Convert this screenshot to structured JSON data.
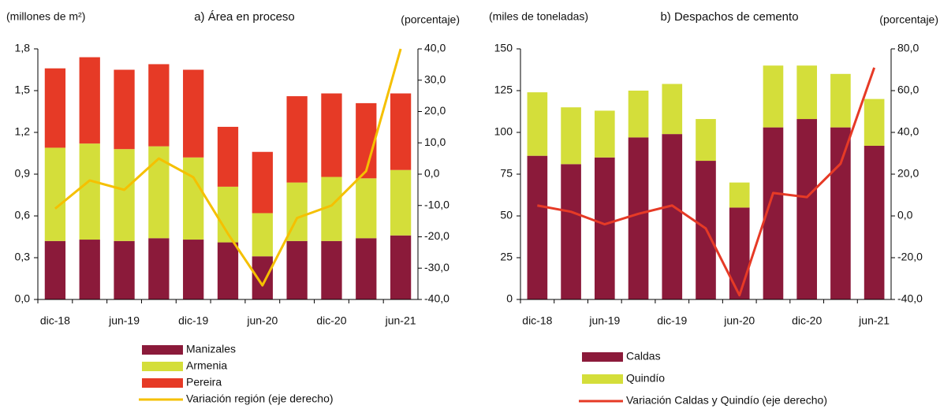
{
  "chart_data": [
    {
      "type": "bar",
      "stacked": true,
      "title": "a) Área en proceso",
      "y_label": "(millones de m²)",
      "y2_label": "(porcentaje)",
      "categories": [
        "dic-18",
        null,
        "jun-19",
        null,
        "dic-19",
        null,
        "jun-20",
        null,
        "dic-20",
        null,
        "jun-21"
      ],
      "series": [
        {
          "name": "Manizales",
          "color": "#8b1a3a",
          "values": [
            0.42,
            0.43,
            0.42,
            0.44,
            0.43,
            0.41,
            0.31,
            0.42,
            0.42,
            0.44,
            0.46
          ]
        },
        {
          "name": "Armenia",
          "color": "#d4de3a",
          "values": [
            0.67,
            0.69,
            0.66,
            0.66,
            0.59,
            0.4,
            0.31,
            0.42,
            0.46,
            0.43,
            0.47
          ]
        },
        {
          "name": "Pereira",
          "color": "#e63a26",
          "values": [
            0.57,
            0.62,
            0.57,
            0.59,
            0.63,
            0.43,
            0.44,
            0.62,
            0.6,
            0.54,
            0.55
          ]
        },
        {
          "name": "Variación región (eje derecho)",
          "type": "line",
          "axis": "y2",
          "color": "#f5c000",
          "values": [
            -11,
            -2,
            -5,
            5,
            -1,
            -19,
            -35.5,
            -14,
            -10,
            1,
            40
          ]
        }
      ],
      "ylim": [
        0,
        1.8
      ],
      "yticks": [
        {
          "value": 0,
          "label": "0,0"
        },
        {
          "value": 0.3,
          "label": "0,3"
        },
        {
          "value": 0.6,
          "label": "0,6"
        },
        {
          "value": 0.9,
          "label": "0,9"
        },
        {
          "value": 1.2,
          "label": "1,2"
        },
        {
          "value": 1.5,
          "label": "1,5"
        },
        {
          "value": 1.8,
          "label": "1,8"
        }
      ],
      "y2lim": [
        -40,
        40
      ],
      "y2ticks": [
        {
          "value": -40,
          "label": "-40,0"
        },
        {
          "value": -30,
          "label": "-30,0"
        },
        {
          "value": -20,
          "label": "-20,0"
        },
        {
          "value": -10,
          "label": "-10,0"
        },
        {
          "value": 0,
          "label": "0,0"
        },
        {
          "value": 10,
          "label": "10,0"
        },
        {
          "value": 20,
          "label": "20,0"
        },
        {
          "value": 30,
          "label": "30,0"
        },
        {
          "value": 40,
          "label": "40,0"
        }
      ],
      "grid": false
    },
    {
      "type": "bar",
      "stacked": true,
      "title": "b) Despachos de cemento",
      "y_label": "(miles de toneladas)",
      "y2_label": "(porcentaje)",
      "categories": [
        "dic-18",
        null,
        "jun-19",
        null,
        "dic-19",
        null,
        "jun-20",
        null,
        "dic-20",
        null,
        "jun-21"
      ],
      "series": [
        {
          "name": "Caldas",
          "color": "#8b1a3a",
          "values": [
            86,
            81,
            85,
            97,
            99,
            83,
            55,
            103,
            108,
            103,
            92
          ]
        },
        {
          "name": "Quindío",
          "color": "#d4de3a",
          "values": [
            38,
            34,
            28,
            28,
            30,
            25,
            15,
            37,
            32,
            32,
            28
          ]
        },
        {
          "name": "Variación Caldas y Quindío (eje derecho)",
          "type": "line",
          "axis": "y2",
          "color": "#e63a26",
          "values": [
            5,
            2,
            -4,
            1,
            5,
            -6,
            -38,
            11,
            9,
            25,
            71
          ]
        }
      ],
      "ylim": [
        0,
        150
      ],
      "yticks": [
        0,
        25,
        50,
        75,
        100,
        125,
        150
      ],
      "y2lim": [
        -40,
        80
      ],
      "y2ticks": [
        {
          "value": -40,
          "label": "-40,0"
        },
        {
          "value": -20,
          "label": "-20,0"
        },
        {
          "value": 0,
          "label": "0,0"
        },
        {
          "value": 20,
          "label": "20,0"
        },
        {
          "value": 40,
          "label": "40,0"
        },
        {
          "value": 60,
          "label": "60,0"
        },
        {
          "value": 80,
          "label": "80,0"
        }
      ],
      "grid": false
    }
  ]
}
